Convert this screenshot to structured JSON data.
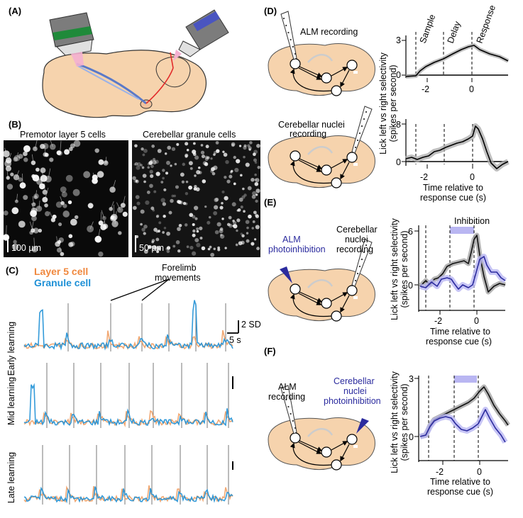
{
  "panels": {
    "a": "(A)",
    "b": "(B)",
    "c": "(C)",
    "d": "(D)",
    "e": "(E)",
    "f": "(F)"
  },
  "b": {
    "left_title": "Premotor layer 5 cells",
    "right_title": "Cerebellar granule cells",
    "left_scale": "100 µm",
    "right_scale": "50 µm"
  },
  "c": {
    "legend_layer5": "Layer 5 cell",
    "legend_granule": "Granule cell",
    "forelimb_line1": "Forelimb",
    "forelimb_line2": "movements",
    "scale_y": "2 SD",
    "scale_x": "5 s",
    "rows": [
      "Early learning",
      "Mid learning",
      "Late learning"
    ]
  },
  "d": {
    "alm_recording": "ALM recording",
    "cn_recording_line1": "Cerebellar nuclei",
    "cn_recording_line2": "recording",
    "epochs": [
      "Sample",
      "Delay",
      "Response"
    ],
    "ylabel_line1": "Lick left vs right selectivity",
    "ylabel_line2": "(spikes per second)",
    "xlabel_line1": "Time relative to",
    "xlabel_line2": "response cue (s)",
    "top_ytick": "3",
    "bottom_ytick": "8",
    "zero": "0",
    "xticks": [
      "-2",
      "0"
    ]
  },
  "e": {
    "stim_line1": "ALM",
    "stim_line2": "photoinhibition",
    "rec_line1": "Cerebellar",
    "rec_line2": "nuclei",
    "rec_line3": "recording",
    "inhibition": "Inhibition",
    "ylabel_line1": "Lick left vs right selectivity",
    "ylabel_line2": "(spikes per second)",
    "ytick": "6",
    "zero": "0",
    "xticks": [
      "-2",
      "0"
    ],
    "xlabel_line1": "Time relative to",
    "xlabel_line2": "response cue (s)"
  },
  "f": {
    "rec_line1": "ALM",
    "rec_line2": "recording",
    "stim_line1": "Cerebellar",
    "stim_line2": "nuclei",
    "stim_line3": "photoinhibition",
    "ylabel_line1": "Lick left vs right selectivity",
    "ylabel_line2": "(spikes per second)",
    "ytick": "3",
    "zero": "0",
    "xticks": [
      "-2",
      "0"
    ],
    "xlabel_line1": "Time relative to",
    "xlabel_line2": "response cue (s)"
  },
  "colors": {
    "brain": "#f6d3ad",
    "layer5": "#f0883e",
    "granule": "#1e90d6",
    "photoinhibition": "#2b2b9e",
    "inhibition_bar": "#b9b6f2",
    "control_trace": "#111111",
    "control_band": "#9c9c9c"
  }
}
